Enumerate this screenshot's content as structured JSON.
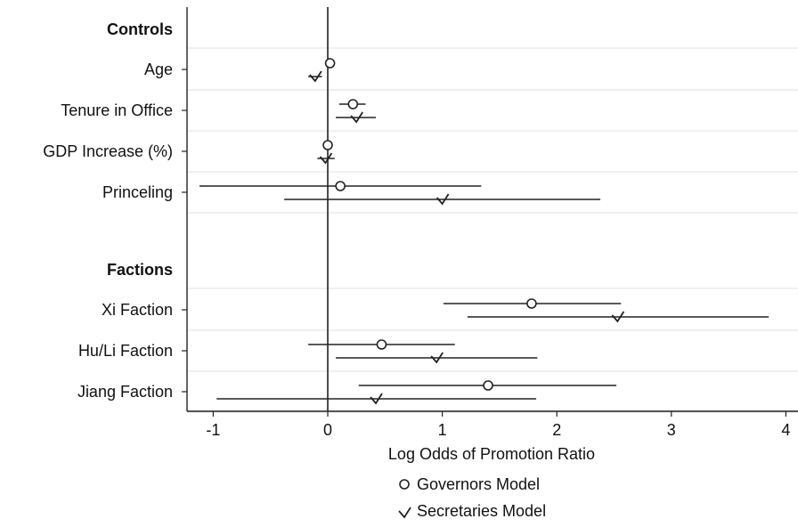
{
  "chart_data": {
    "type": "scatter",
    "subtype": "coefficient-plot",
    "title": "",
    "xlabel": "Log Odds of Promotion Ratio",
    "ylabel": "",
    "xlim": [
      -1.2,
      4
    ],
    "xticks": [
      -1,
      0,
      1,
      2,
      3,
      4
    ],
    "reference_line": 0,
    "grid": "horizontal",
    "legend_position": "bottom",
    "groups": [
      {
        "label": "Controls",
        "rows": [
          "Age",
          "Tenure in Office",
          "GDP Increase (%)",
          "Princeling"
        ]
      },
      {
        "label": "Factions",
        "rows": [
          "Xi Faction",
          "Hu/Li Faction",
          "Jiang Faction"
        ]
      }
    ],
    "series": [
      {
        "name": "Governors Model",
        "marker": "circle",
        "points": [
          {
            "label": "Age",
            "estimate": 0.02,
            "lower": -0.02,
            "upper": 0.06
          },
          {
            "label": "Tenure in Office",
            "estimate": 0.22,
            "lower": 0.1,
            "upper": 0.33
          },
          {
            "label": "GDP Increase (%)",
            "estimate": 0.0,
            "lower": -0.04,
            "upper": 0.04
          },
          {
            "label": "Princeling",
            "estimate": 0.11,
            "lower": -1.12,
            "upper": 1.34
          },
          {
            "label": "Xi Faction",
            "estimate": 1.78,
            "lower": 1.01,
            "upper": 2.56
          },
          {
            "label": "Hu/Li Faction",
            "estimate": 0.47,
            "lower": -0.17,
            "upper": 1.11
          },
          {
            "label": "Jiang Faction",
            "estimate": 1.4,
            "lower": 0.27,
            "upper": 2.52
          }
        ]
      },
      {
        "name": "Secretaries Model",
        "marker": "check",
        "points": [
          {
            "label": "Age",
            "estimate": -0.11,
            "lower": -0.17,
            "upper": -0.05
          },
          {
            "label": "Tenure in Office",
            "estimate": 0.25,
            "lower": 0.07,
            "upper": 0.42
          },
          {
            "label": "GDP Increase (%)",
            "estimate": -0.02,
            "lower": -0.09,
            "upper": 0.06
          },
          {
            "label": "Princeling",
            "estimate": 1.0,
            "lower": -0.38,
            "upper": 2.38
          },
          {
            "label": "Xi Faction",
            "estimate": 2.53,
            "lower": 1.22,
            "upper": 3.85
          },
          {
            "label": "Hu/Li Faction",
            "estimate": 0.95,
            "lower": 0.07,
            "upper": 1.83
          },
          {
            "label": "Jiang Faction",
            "estimate": 0.42,
            "lower": -0.97,
            "upper": 1.82
          }
        ]
      }
    ]
  }
}
